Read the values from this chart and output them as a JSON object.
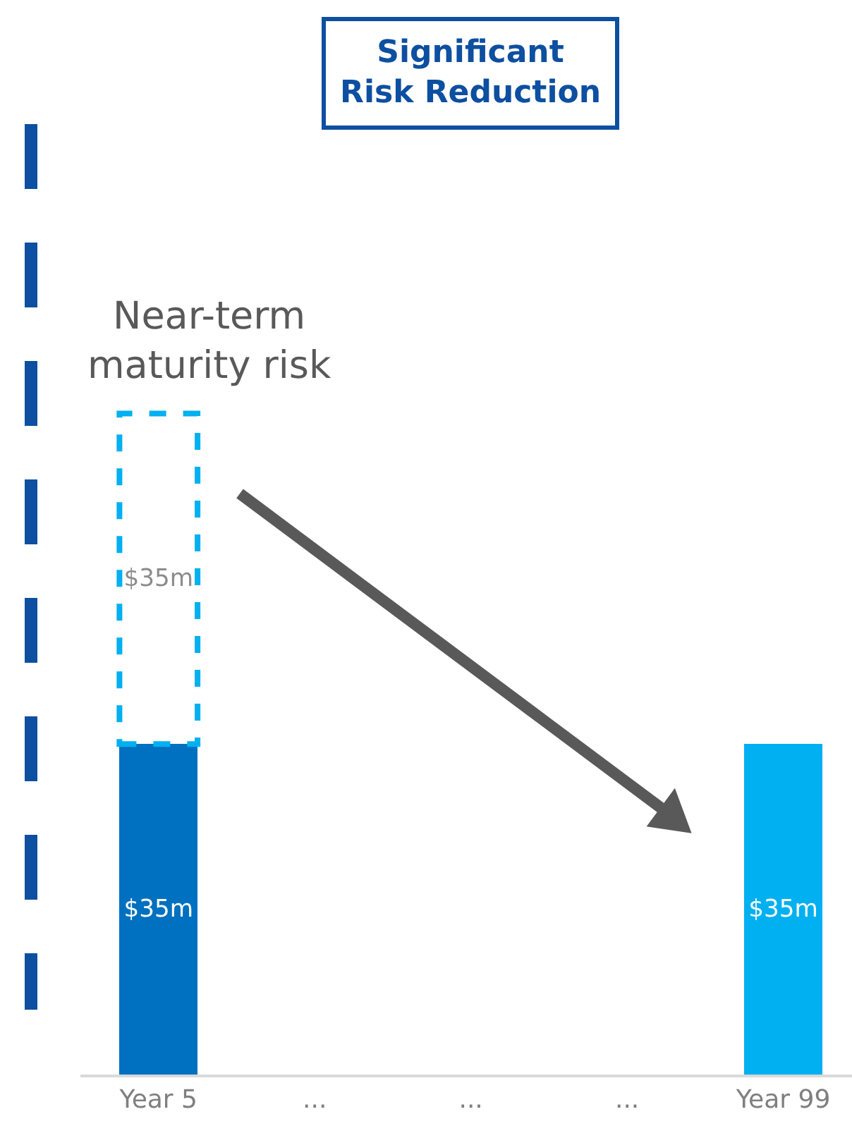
{
  "chart_data": {
    "type": "bar",
    "stacked": true,
    "categories": [
      "Year 5",
      "...",
      "...",
      "...",
      "Year 99"
    ],
    "series": [
      {
        "values": [
          35,
          null,
          null,
          null,
          35
        ],
        "colors": [
          "#0070c0",
          null,
          null,
          null,
          "#00b0f0"
        ],
        "value_labels": [
          "$35m",
          null,
          null,
          null,
          "$35m"
        ]
      },
      {
        "values": [
          35,
          null,
          null,
          null,
          null
        ],
        "color": "#00b0f0",
        "line_style": "dashed",
        "value_labels": [
          "$35m",
          null,
          null,
          null,
          null
        ]
      }
    ],
    "annotations": [
      "Significant\nRisk Reduction",
      {
        "text": "Near-term\nmaturity risk",
        "x": "Year 5",
        "y": 70
      }
    ]
  }
}
